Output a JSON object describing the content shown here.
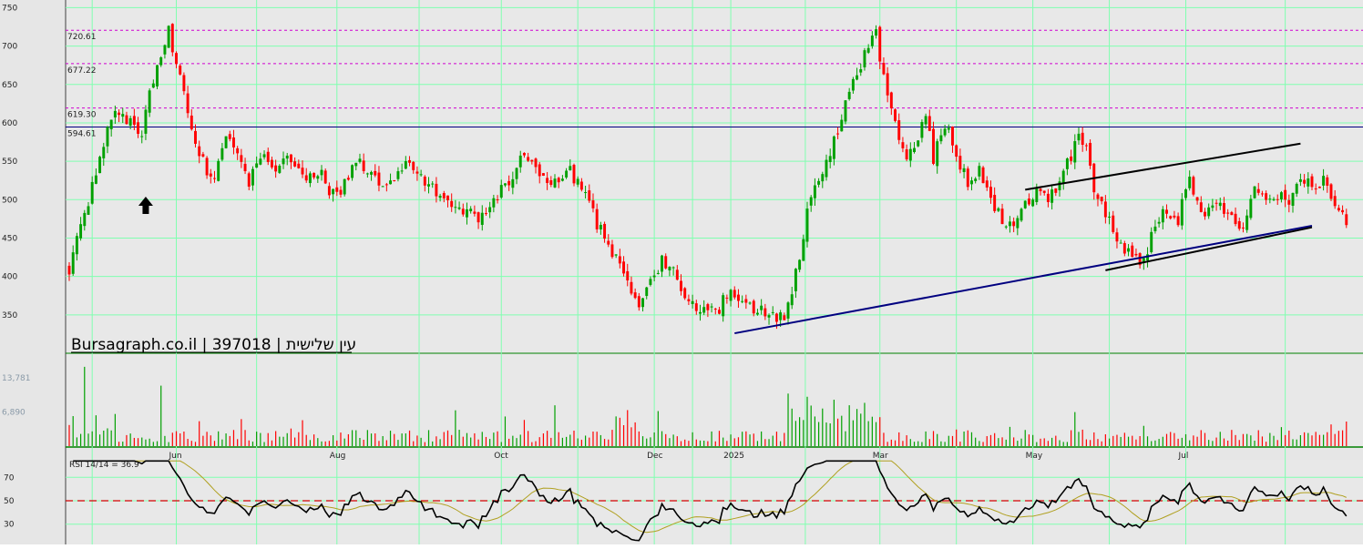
{
  "watermark": "Bursagraph.co.il | 397018 | עין שלישית",
  "chart_data": {
    "type": "candlestick",
    "symbol": "397018",
    "price_axis": {
      "ylim": [
        300,
        760
      ],
      "ticks": [
        350,
        400,
        450,
        500,
        550,
        600,
        650,
        700,
        750
      ]
    },
    "x_axis": {
      "day_range": [
        0,
        325
      ],
      "month_labels": [
        {
          "label": "Jun",
          "day": 28
        },
        {
          "label": "Aug",
          "day": 70
        },
        {
          "label": "Oct",
          "day": 113
        },
        {
          "label": "Dec",
          "day": 153
        },
        {
          "label": "2025",
          "day": 173
        },
        {
          "label": "Mar",
          "day": 212
        },
        {
          "label": "May",
          "day": 252
        },
        {
          "label": "Jul",
          "day": 292
        }
      ]
    },
    "levels": [
      {
        "label": "720.61",
        "value": 720.61,
        "color": "#d000d0"
      },
      {
        "label": "677.22",
        "value": 677.22,
        "color": "#d000d0"
      },
      {
        "label": "619.30",
        "value": 619.3,
        "color": "#d000d0"
      },
      {
        "label": "594.61",
        "value": 594.61,
        "color": "#000080"
      }
    ],
    "trendlines": [
      {
        "from": [
          174,
          326
        ],
        "to": [
          325,
          466
        ],
        "color": "#000080"
      },
      {
        "from": [
          271,
          408
        ],
        "to": [
          325,
          464
        ],
        "color": "#000000"
      },
      {
        "from": [
          250,
          513
        ],
        "to": [
          322,
          573
        ],
        "color": "#000000"
      }
    ],
    "arrow_marker": {
      "day": 20,
      "price": 492
    },
    "price_keypoints": [
      [
        0,
        410
      ],
      [
        4,
        480
      ],
      [
        8,
        560
      ],
      [
        12,
        620
      ],
      [
        16,
        600
      ],
      [
        19,
        585
      ],
      [
        22,
        660
      ],
      [
        24,
        690
      ],
      [
        26,
        720
      ],
      [
        28,
        670
      ],
      [
        30,
        640
      ],
      [
        34,
        560
      ],
      [
        38,
        520
      ],
      [
        41,
        590
      ],
      [
        44,
        555
      ],
      [
        47,
        525
      ],
      [
        50,
        560
      ],
      [
        54,
        545
      ],
      [
        58,
        555
      ],
      [
        62,
        525
      ],
      [
        66,
        532
      ],
      [
        69,
        505
      ],
      [
        72,
        520
      ],
      [
        75,
        552
      ],
      [
        78,
        538
      ],
      [
        82,
        518
      ],
      [
        85,
        530
      ],
      [
        89,
        548
      ],
      [
        93,
        525
      ],
      [
        97,
        505
      ],
      [
        101,
        495
      ],
      [
        105,
        480
      ],
      [
        108,
        475
      ],
      [
        112,
        505
      ],
      [
        116,
        528
      ],
      [
        118,
        560
      ],
      [
        121,
        555
      ],
      [
        124,
        530
      ],
      [
        127,
        522
      ],
      [
        131,
        535
      ],
      [
        135,
        510
      ],
      [
        138,
        470
      ],
      [
        141,
        440
      ],
      [
        144,
        410
      ],
      [
        147,
        380
      ],
      [
        149,
        355
      ],
      [
        152,
        395
      ],
      [
        155,
        420
      ],
      [
        158,
        405
      ],
      [
        161,
        380
      ],
      [
        164,
        360
      ],
      [
        167,
        350
      ],
      [
        170,
        360
      ],
      [
        173,
        380
      ],
      [
        175,
        370
      ],
      [
        179,
        357
      ],
      [
        183,
        349
      ],
      [
        187,
        345
      ],
      [
        189,
        375
      ],
      [
        191,
        430
      ],
      [
        193,
        480
      ],
      [
        196,
        525
      ],
      [
        199,
        555
      ],
      [
        202,
        610
      ],
      [
        205,
        650
      ],
      [
        208,
        690
      ],
      [
        211,
        715
      ],
      [
        213,
        655
      ],
      [
        216,
        600
      ],
      [
        219,
        555
      ],
      [
        222,
        575
      ],
      [
        224,
        615
      ],
      [
        226,
        555
      ],
      [
        229,
        600
      ],
      [
        232,
        560
      ],
      [
        235,
        520
      ],
      [
        238,
        540
      ],
      [
        241,
        500
      ],
      [
        244,
        470
      ],
      [
        247,
        460
      ],
      [
        250,
        498
      ],
      [
        253,
        510
      ],
      [
        256,
        495
      ],
      [
        259,
        525
      ],
      [
        262,
        555
      ],
      [
        264,
        590
      ],
      [
        266,
        570
      ],
      [
        268,
        510
      ],
      [
        271,
        485
      ],
      [
        274,
        450
      ],
      [
        276,
        432
      ],
      [
        278,
        425
      ],
      [
        281,
        420
      ],
      [
        284,
        468
      ],
      [
        287,
        488
      ],
      [
        290,
        475
      ],
      [
        293,
        530
      ],
      [
        296,
        478
      ],
      [
        299,
        495
      ],
      [
        302,
        485
      ],
      [
        305,
        470
      ],
      [
        307,
        465
      ],
      [
        310,
        520
      ],
      [
        313,
        495
      ],
      [
        316,
        505
      ],
      [
        319,
        495
      ],
      [
        322,
        535
      ],
      [
        325,
        515
      ],
      [
        328,
        528
      ],
      [
        331,
        490
      ],
      [
        334,
        470
      ]
    ],
    "volume": {
      "ylim": [
        0,
        18000
      ],
      "ticks": [
        {
          "label": "13,781",
          "value": 13781
        },
        {
          "label": "6,890",
          "value": 6890
        }
      ]
    },
    "rsi": {
      "label": "RSI 14/14 = 36.9",
      "current": 36.9,
      "ylim": [
        15,
        85
      ],
      "ticks": [
        70,
        50,
        30
      ],
      "reference_line": 50,
      "reference_color": "#d00000"
    },
    "colors": {
      "up": "#00a000",
      "down": "#ff0000",
      "grid": "#80ffb0",
      "background": "#e8e8e8",
      "rsi_line": "#000000",
      "rsi_signal": "#b0a020"
    }
  }
}
